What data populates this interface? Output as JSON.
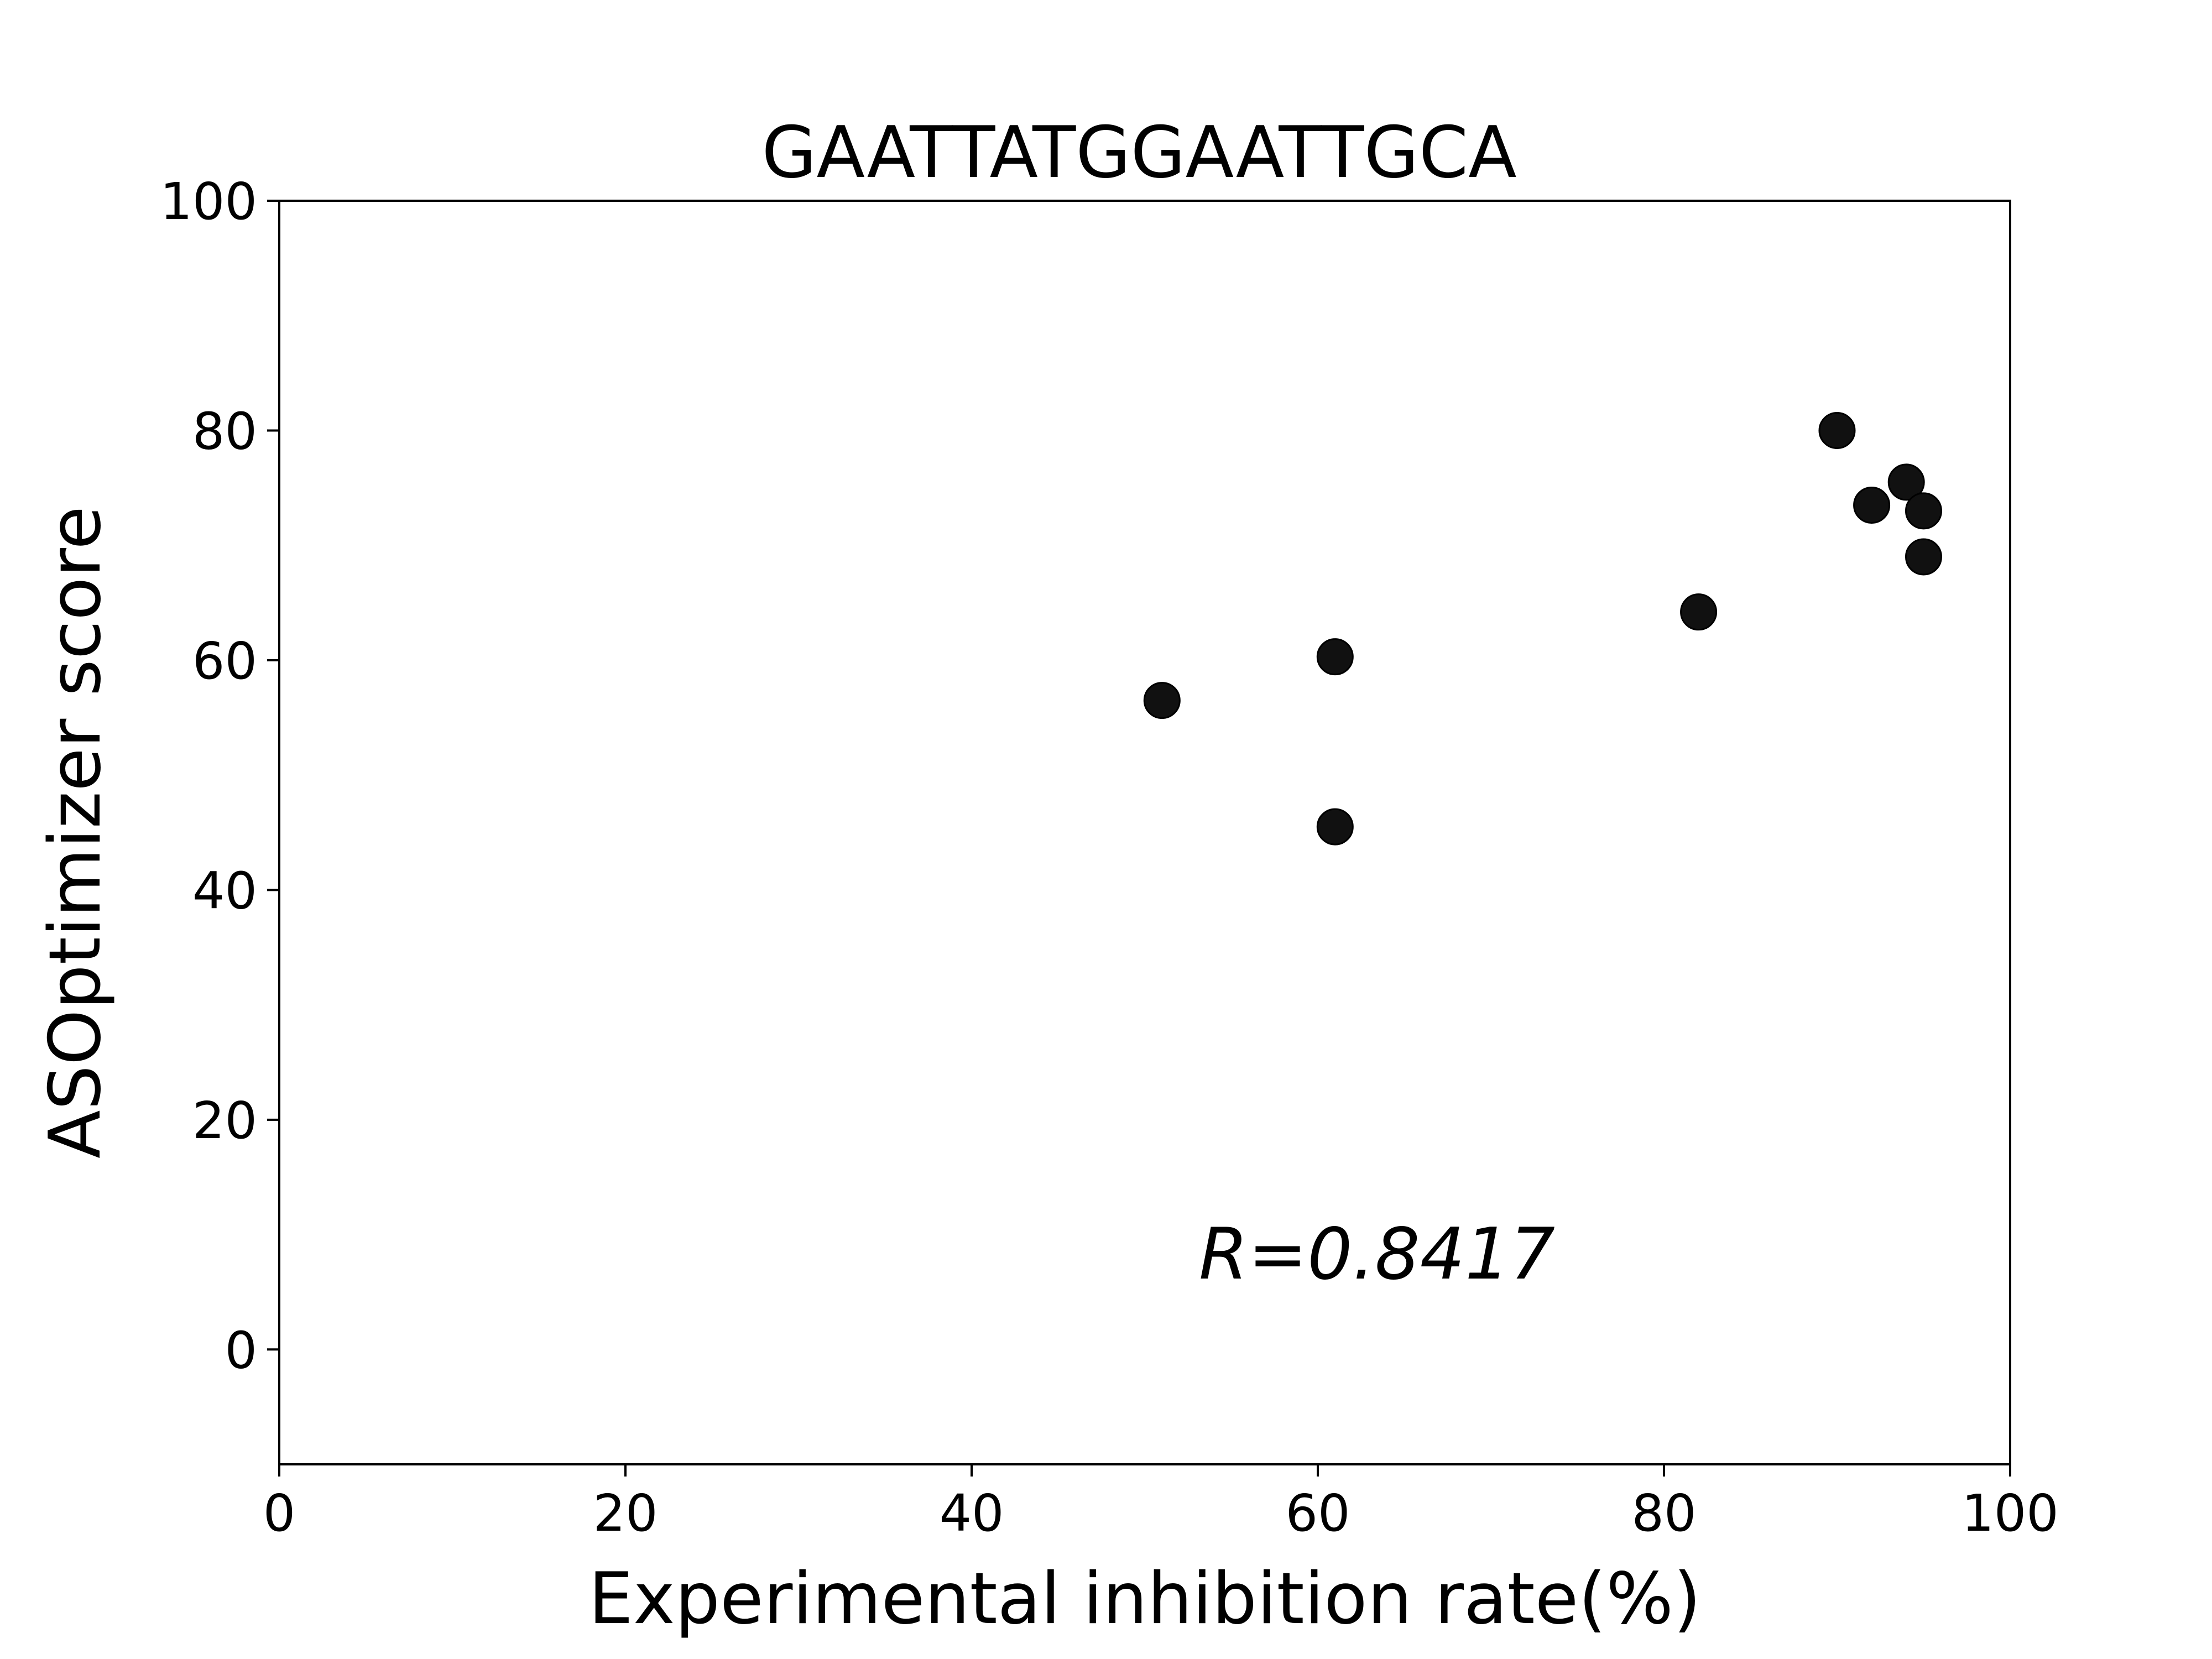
{
  "chart_data": {
    "type": "scatter",
    "title": "GAATTATGGAATTGCA",
    "xlabel": "Experimental inhibition rate(%)",
    "ylabel": "ASOptimizer score",
    "xlim": [
      0,
      100
    ],
    "ylim": [
      -10,
      100
    ],
    "xticks": [
      "0",
      "20",
      "40",
      "60",
      "80",
      "100"
    ],
    "yticks": [
      "0",
      "20",
      "40",
      "60",
      "80",
      "100"
    ],
    "grid": false,
    "annotation": "R=0.8417",
    "point_color": "#111111",
    "points": [
      {
        "x": 51,
        "y": 56.5
      },
      {
        "x": 61,
        "y": 60.3
      },
      {
        "x": 61,
        "y": 45.5
      },
      {
        "x": 82,
        "y": 64.2
      },
      {
        "x": 90,
        "y": 80.0
      },
      {
        "x": 92,
        "y": 73.5
      },
      {
        "x": 94,
        "y": 75.5
      },
      {
        "x": 95,
        "y": 73.0
      },
      {
        "x": 95,
        "y": 69.0
      }
    ]
  }
}
